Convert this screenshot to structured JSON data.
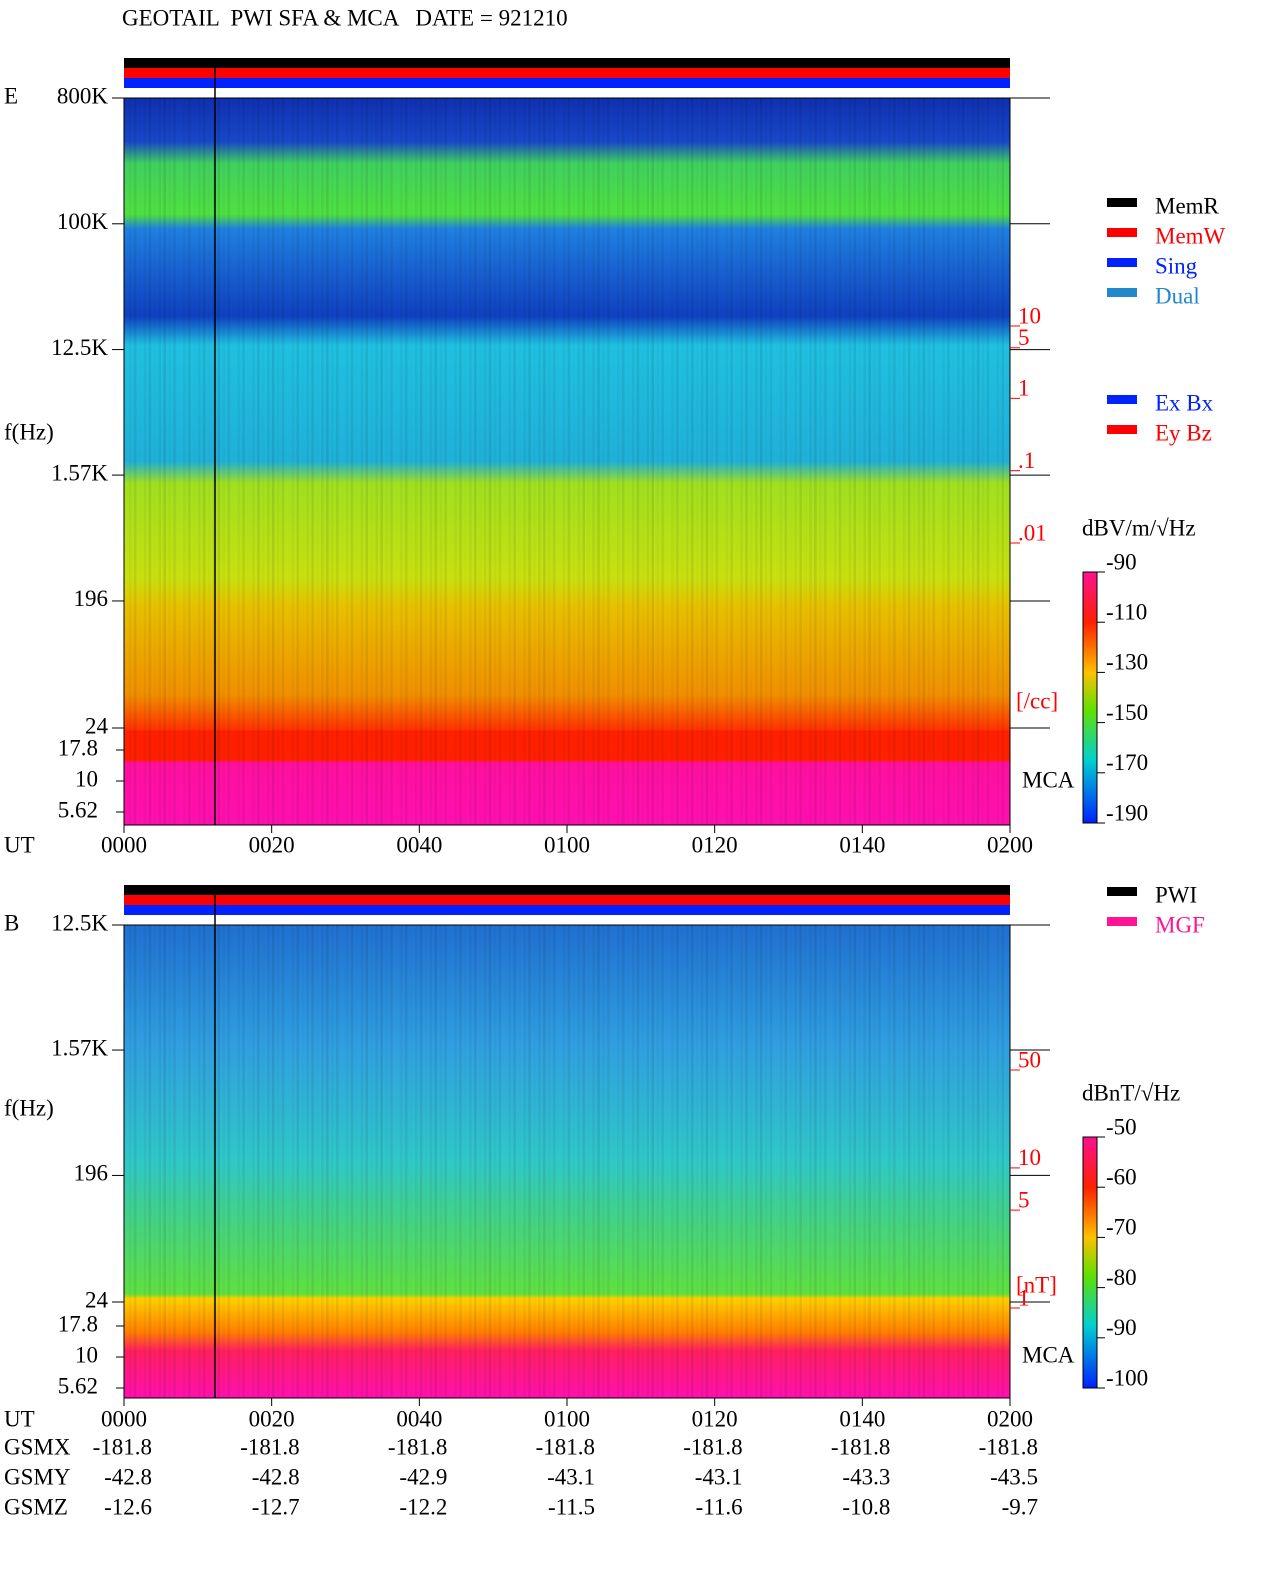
{
  "title": "GEOTAIL  PWI SFA & MCA   DATE = 921210",
  "chart_data": [
    {
      "type": "spectrogram",
      "label": "E",
      "ylabel": "f(Hz)",
      "xlabel": "UT",
      "log_scale": true,
      "ylim": [
        24,
        800000
      ],
      "yticks": [
        {
          "value": 800000,
          "label": "800K"
        },
        {
          "value": 100000,
          "label": "100K"
        },
        {
          "value": 12500,
          "label": "12.5K"
        },
        {
          "value": 1570,
          "label": "1.57K"
        },
        196,
        24
      ],
      "mca_label": "MCA",
      "mca_ylim": [
        5.62,
        17.8
      ],
      "mca_yticks": [
        17.8,
        10,
        5.62
      ],
      "y2label": "[/cc]",
      "y2lim": [
        0.01,
        10
      ],
      "y2ticks": [
        10,
        5,
        1,
        {
          "value": 0.1,
          "label": ".1"
        },
        {
          "value": 0.01,
          "label": ".01"
        }
      ],
      "xlim": [
        0,
        120
      ],
      "xticks": [
        {
          "value": 0,
          "label": "0000"
        },
        {
          "value": 20,
          "label": "0020"
        },
        {
          "value": 40,
          "label": "0040"
        },
        {
          "value": 60,
          "label": "0100"
        },
        {
          "value": 80,
          "label": "0120"
        },
        {
          "value": 100,
          "label": "0140"
        },
        {
          "value": 120,
          "label": "0200"
        }
      ],
      "colorbar": {
        "label": "dBV/m/√Hz",
        "lim": [
          -190,
          -90
        ],
        "ticks": [
          -90,
          -110,
          -130,
          -150,
          -170,
          -190
        ]
      },
      "legends": [
        [
          {
            "name": "MemR",
            "color": "#000000"
          },
          {
            "name": "MemW",
            "color": "#ff0000"
          },
          {
            "name": "Sing",
            "color": "#0022ff"
          },
          {
            "name": "Dual",
            "color": "#2288cc"
          }
        ],
        [
          {
            "name": "Ex Bx",
            "color": "#0022ff"
          },
          {
            "name": "Ey Bz",
            "color": "#ff0000"
          }
        ]
      ]
    },
    {
      "type": "spectrogram",
      "label": "B",
      "ylabel": "f(Hz)",
      "xlabel": "UT",
      "log_scale": true,
      "ylim": [
        24,
        12500
      ],
      "yticks": [
        {
          "value": 12500,
          "label": "12.5K"
        },
        {
          "value": 1570,
          "label": "1.57K"
        },
        196,
        24
      ],
      "mca_label": "MCA",
      "mca_ylim": [
        5.62,
        17.8
      ],
      "mca_yticks": [
        17.8,
        10,
        5.62
      ],
      "y2label": "[nT]",
      "y2lim": [
        1,
        50
      ],
      "y2ticks": [
        50,
        10,
        5,
        1
      ],
      "xlim": [
        0,
        120
      ],
      "xticks": [
        {
          "value": 0,
          "label": "0000"
        },
        {
          "value": 20,
          "label": "0020"
        },
        {
          "value": 40,
          "label": "0040"
        },
        {
          "value": 60,
          "label": "0100"
        },
        {
          "value": 80,
          "label": "0120"
        },
        {
          "value": 100,
          "label": "0140"
        },
        {
          "value": 120,
          "label": "0200"
        }
      ],
      "colorbar": {
        "label": "dBnT/√Hz",
        "lim": [
          -100,
          -50
        ],
        "ticks": [
          -50,
          -60,
          -70,
          -80,
          -90,
          -100
        ]
      },
      "legends": [
        [
          {
            "name": "PWI",
            "color": "#000000"
          },
          {
            "name": "MGF",
            "color": "#ff1493"
          }
        ]
      ]
    }
  ],
  "orbit": {
    "labels": [
      "GSMX",
      "GSMY",
      "GSMZ"
    ],
    "rows": [
      [
        -181.8,
        -181.8,
        -181.8,
        -181.8,
        -181.8,
        -181.8,
        -181.8
      ],
      [
        -42.8,
        -42.8,
        -42.9,
        -43.1,
        -43.1,
        -43.3,
        -43.5
      ],
      [
        -12.6,
        -12.7,
        -12.2,
        -11.5,
        -11.6,
        -10.8,
        -9.7
      ]
    ]
  }
}
